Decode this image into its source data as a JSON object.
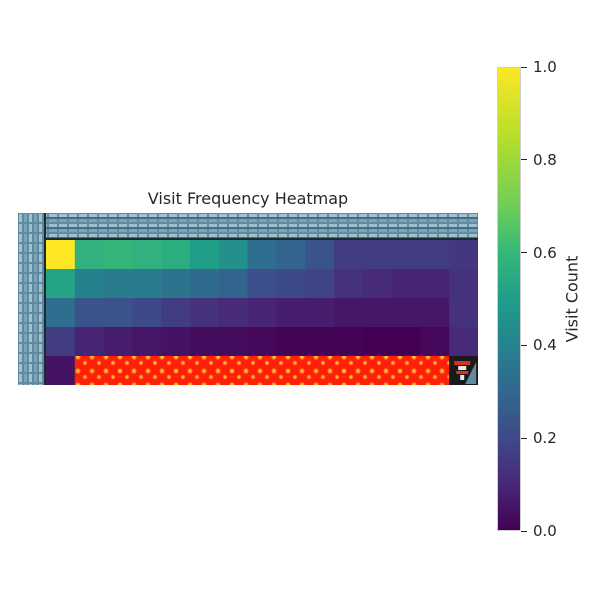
{
  "title": "Visit Frequency Heatmap",
  "colorbar": {
    "label": "Visit Count",
    "ticks": [
      "0.0",
      "0.2",
      "0.4",
      "0.6",
      "0.8",
      "1.0"
    ],
    "tick_values": [
      0.0,
      0.2,
      0.4,
      0.6,
      0.8,
      1.0
    ],
    "range": [
      0,
      1
    ],
    "colormap": "viridis"
  },
  "grid": {
    "columns": 15,
    "rows": 4,
    "visit_values": [
      [
        1.0,
        0.64,
        0.66,
        0.64,
        0.62,
        0.56,
        0.5,
        0.36,
        0.32,
        0.26,
        0.18,
        0.18,
        0.18,
        0.18,
        0.16
      ],
      [
        0.58,
        0.44,
        0.42,
        0.42,
        0.38,
        0.34,
        0.32,
        0.24,
        0.22,
        0.2,
        0.14,
        0.12,
        0.1,
        0.1,
        0.14
      ],
      [
        0.36,
        0.26,
        0.26,
        0.22,
        0.18,
        0.14,
        0.12,
        0.1,
        0.08,
        0.08,
        0.06,
        0.06,
        0.06,
        0.06,
        0.14
      ],
      [
        0.18,
        0.1,
        0.08,
        0.06,
        0.05,
        0.03,
        0.03,
        0.02,
        0.01,
        0.01,
        0.01,
        0.0,
        0.0,
        0.02,
        0.12
      ]
    ]
  },
  "agent_cell": [
    0,
    4
  ],
  "lava_row": 4,
  "lava_columns": [
    1,
    13
  ],
  "goal_cell": [
    14,
    4
  ],
  "colors": {
    "lava": "#ff1f0a",
    "lava_dots": "#ff8a1e",
    "wall": "#5f8aa0",
    "wall_dark": "#2f4f5e"
  }
}
